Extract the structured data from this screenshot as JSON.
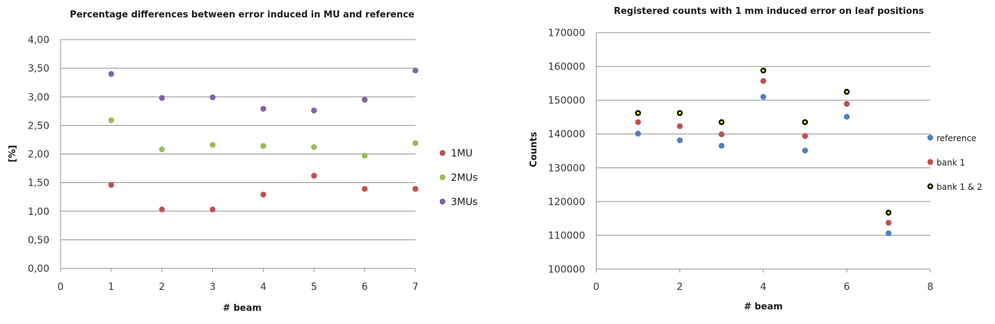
{
  "chart_data": [
    {
      "type": "scatter",
      "title": "Percentage differences between error induced in MU and reference",
      "xlabel": "# beam",
      "ylabel": "[%]",
      "xlim": [
        0,
        7
      ],
      "ylim": [
        0,
        4
      ],
      "xticks": [
        "0",
        "1",
        "2",
        "3",
        "4",
        "5",
        "6",
        "7"
      ],
      "yticks": [
        "0,00",
        "0,50",
        "1,00",
        "1,50",
        "2,00",
        "2,50",
        "3,00",
        "3,50",
        "4,00"
      ],
      "grid": "horizontal",
      "legend_position": "right",
      "series": [
        {
          "name": "1MU",
          "color": "#c0504d",
          "x": [
            1,
            2,
            3,
            4,
            5,
            6,
            7
          ],
          "y": [
            1.46,
            1.03,
            1.03,
            1.29,
            1.62,
            1.39,
            1.39
          ]
        },
        {
          "name": "2MUs",
          "color": "#9bbb59",
          "x": [
            1,
            2,
            3,
            4,
            5,
            6,
            7
          ],
          "y": [
            2.59,
            2.08,
            2.16,
            2.14,
            2.12,
            1.97,
            2.19
          ]
        },
        {
          "name": "3MUs",
          "color": "#8064a2",
          "x": [
            1,
            2,
            3,
            4,
            5,
            6,
            7
          ],
          "y": [
            3.4,
            2.98,
            2.99,
            2.79,
            2.76,
            2.95,
            3.46
          ]
        }
      ]
    },
    {
      "type": "scatter",
      "title": "Registered counts with 1 mm induced error on leaf positions",
      "xlabel": "# beam",
      "ylabel": "Counts",
      "xlim": [
        0,
        8
      ],
      "ylim": [
        100000,
        170000
      ],
      "xticks": [
        "0",
        "2",
        "4",
        "6",
        "8"
      ],
      "yticks": [
        "100000",
        "110000",
        "120000",
        "130000",
        "140000",
        "150000",
        "160000",
        "170000"
      ],
      "grid": "horizontal",
      "legend_position": "right",
      "series": [
        {
          "name": "reference",
          "color": "#4f81bd",
          "marker": "circle",
          "x": [
            1,
            2,
            3,
            4,
            5,
            6,
            7
          ],
          "y": [
            140100,
            138100,
            136500,
            151000,
            135100,
            145100,
            110600
          ]
        },
        {
          "name": "bank 1",
          "color": "#c0504d",
          "marker": "circle",
          "x": [
            1,
            2,
            3,
            4,
            5,
            6,
            7
          ],
          "y": [
            143500,
            142300,
            139900,
            155700,
            139400,
            148900,
            113700
          ]
        },
        {
          "name": "bank 1 & 2",
          "color": "#000000",
          "inner_color": "#ffff00",
          "marker": "circle",
          "x": [
            1,
            2,
            3,
            4,
            5,
            6,
            7
          ],
          "y": [
            146200,
            146200,
            143500,
            158800,
            143500,
            152500,
            116700
          ]
        }
      ]
    }
  ]
}
